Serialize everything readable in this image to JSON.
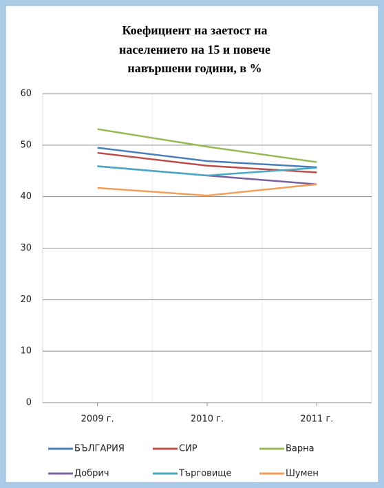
{
  "chart_data": {
    "type": "line",
    "title": [
      "Коефициент на заетост на",
      "населението на 15 и повече",
      "навършени години, в %"
    ],
    "categories": [
      "2009 г.",
      "2010 г.",
      "2011 г."
    ],
    "series": [
      {
        "name": "БЪЛГАРИЯ",
        "color": "#4a7ebb",
        "values": [
          49.5,
          46.9,
          45.7
        ]
      },
      {
        "name": "СИР",
        "color": "#be4b48",
        "values": [
          48.5,
          46.0,
          44.7
        ]
      },
      {
        "name": "Варна",
        "color": "#98b954",
        "values": [
          53.1,
          49.7,
          46.7
        ]
      },
      {
        "name": "Добрич",
        "color": "#7d60a0",
        "values": [
          45.9,
          44.1,
          42.4
        ]
      },
      {
        "name": "Търговище",
        "color": "#46aac5",
        "values": [
          45.9,
          44.1,
          45.6
        ]
      },
      {
        "name": "Шумен",
        "color": "#f59d56",
        "values": [
          41.7,
          40.2,
          42.4
        ]
      }
    ],
    "ylim": [
      0,
      60
    ],
    "yticks": [
      0,
      10,
      20,
      30,
      40,
      50,
      60
    ],
    "grid": true,
    "legend": "bottom"
  }
}
